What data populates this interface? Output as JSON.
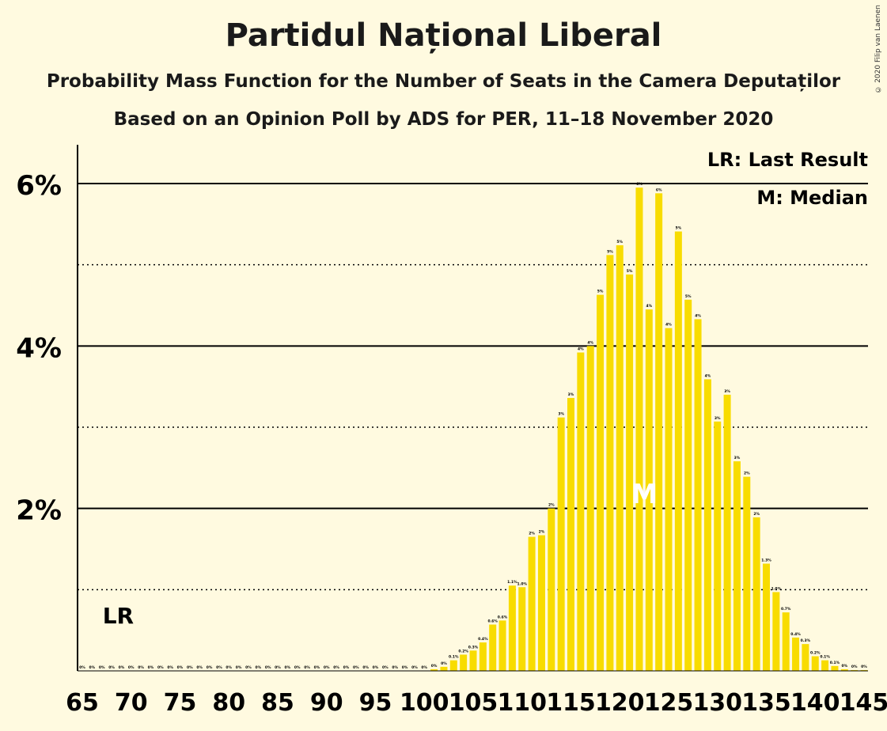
{
  "title": "Partidul Național Liberal",
  "subtitle": "Probability Mass Function for the Number of Seats in the Camera Deputaților",
  "subtitle2": "Based on an Opinion Poll by ADS for PER, 11–18 November 2020",
  "copyright": "© 2020 Filip van Laenen",
  "legend": {
    "lr": "LR: Last Result",
    "median": "M: Median"
  },
  "markers": {
    "last_result_label": "LR",
    "median_label": "M"
  },
  "colors": {
    "bar": "#F8DC00",
    "background": "#FFFAE0",
    "axis": "#000000"
  },
  "chart_data": {
    "type": "bar",
    "xlim": [
      65,
      145
    ],
    "ylim": [
      0,
      6.5
    ],
    "y_ticks_major": [
      0,
      2,
      4,
      6
    ],
    "y_ticks_minor": [
      1,
      3,
      5
    ],
    "y_tick_labels": [
      "2%",
      "4%",
      "6%"
    ],
    "x_tick_labels": [
      "65",
      "70",
      "75",
      "80",
      "85",
      "90",
      "95",
      "100",
      "105",
      "110",
      "115",
      "120",
      "125",
      "130",
      "135",
      "140",
      "145"
    ],
    "last_result_seat": 69,
    "median_seat": 123,
    "x": [
      65,
      66,
      67,
      68,
      69,
      70,
      71,
      72,
      73,
      74,
      75,
      76,
      77,
      78,
      79,
      80,
      81,
      82,
      83,
      84,
      85,
      86,
      87,
      88,
      89,
      90,
      91,
      92,
      93,
      94,
      95,
      96,
      97,
      98,
      99,
      100,
      101,
      102,
      103,
      104,
      105,
      106,
      107,
      108,
      109,
      110,
      111,
      112,
      113,
      114,
      115,
      116,
      117,
      118,
      119,
      120,
      121,
      122,
      123,
      124,
      125,
      126,
      127,
      128,
      129,
      130,
      131,
      132,
      133,
      134,
      135,
      136,
      137,
      138,
      139,
      140,
      141,
      142,
      143,
      144,
      145
    ],
    "values": [
      0,
      0,
      0,
      0,
      0,
      0,
      0,
      0,
      0,
      0,
      0,
      0,
      0,
      0,
      0,
      0,
      0,
      0,
      0,
      0,
      0,
      0,
      0,
      0,
      0,
      0,
      0,
      0,
      0,
      0,
      0,
      0,
      0,
      0,
      0,
      0,
      0.02,
      0.05,
      0.13,
      0.2,
      0.25,
      0.35,
      0.57,
      0.62,
      1.05,
      1.03,
      1.65,
      1.67,
      2.0,
      3.12,
      3.36,
      3.92,
      4.0,
      4.63,
      5.12,
      5.24,
      4.88,
      5.95,
      4.45,
      5.88,
      4.22,
      5.41,
      4.57,
      4.33,
      3.59,
      3.07,
      3.4,
      2.58,
      2.39,
      1.89,
      1.32,
      0.97,
      0.72,
      0.41,
      0.33,
      0.18,
      0.13,
      0.06,
      0.02,
      0.01,
      0.01
    ],
    "value_labels": [
      "0%",
      "0%",
      "0%",
      "0%",
      "0%",
      "0%",
      "0%",
      "0%",
      "0%",
      "0%",
      "0%",
      "0%",
      "0%",
      "0%",
      "0%",
      "0%",
      "0%",
      "0%",
      "0%",
      "0%",
      "0%",
      "0%",
      "0%",
      "0%",
      "0%",
      "0%",
      "0%",
      "0%",
      "0%",
      "0%",
      "0%",
      "0%",
      "0%",
      "0%",
      "0%",
      "0%",
      "0%",
      "0%",
      "0.1%",
      "0.2%",
      "0.3%",
      "0.4%",
      "0.6%",
      "0.6%",
      "1.1%",
      "1.0%",
      "2%",
      "2%",
      "2%",
      "3%",
      "3%",
      "4%",
      "4%",
      "5%",
      "5%",
      "5%",
      "5%",
      "6%",
      "4%",
      "6%",
      "4%",
      "5%",
      "5%",
      "4%",
      "4%",
      "3%",
      "3%",
      "3%",
      "2%",
      "2%",
      "1.3%",
      "1.0%",
      "0.7%",
      "0.4%",
      "0.3%",
      "0.2%",
      "0.1%",
      "0.1%",
      "0%",
      "0%",
      "0%"
    ]
  }
}
